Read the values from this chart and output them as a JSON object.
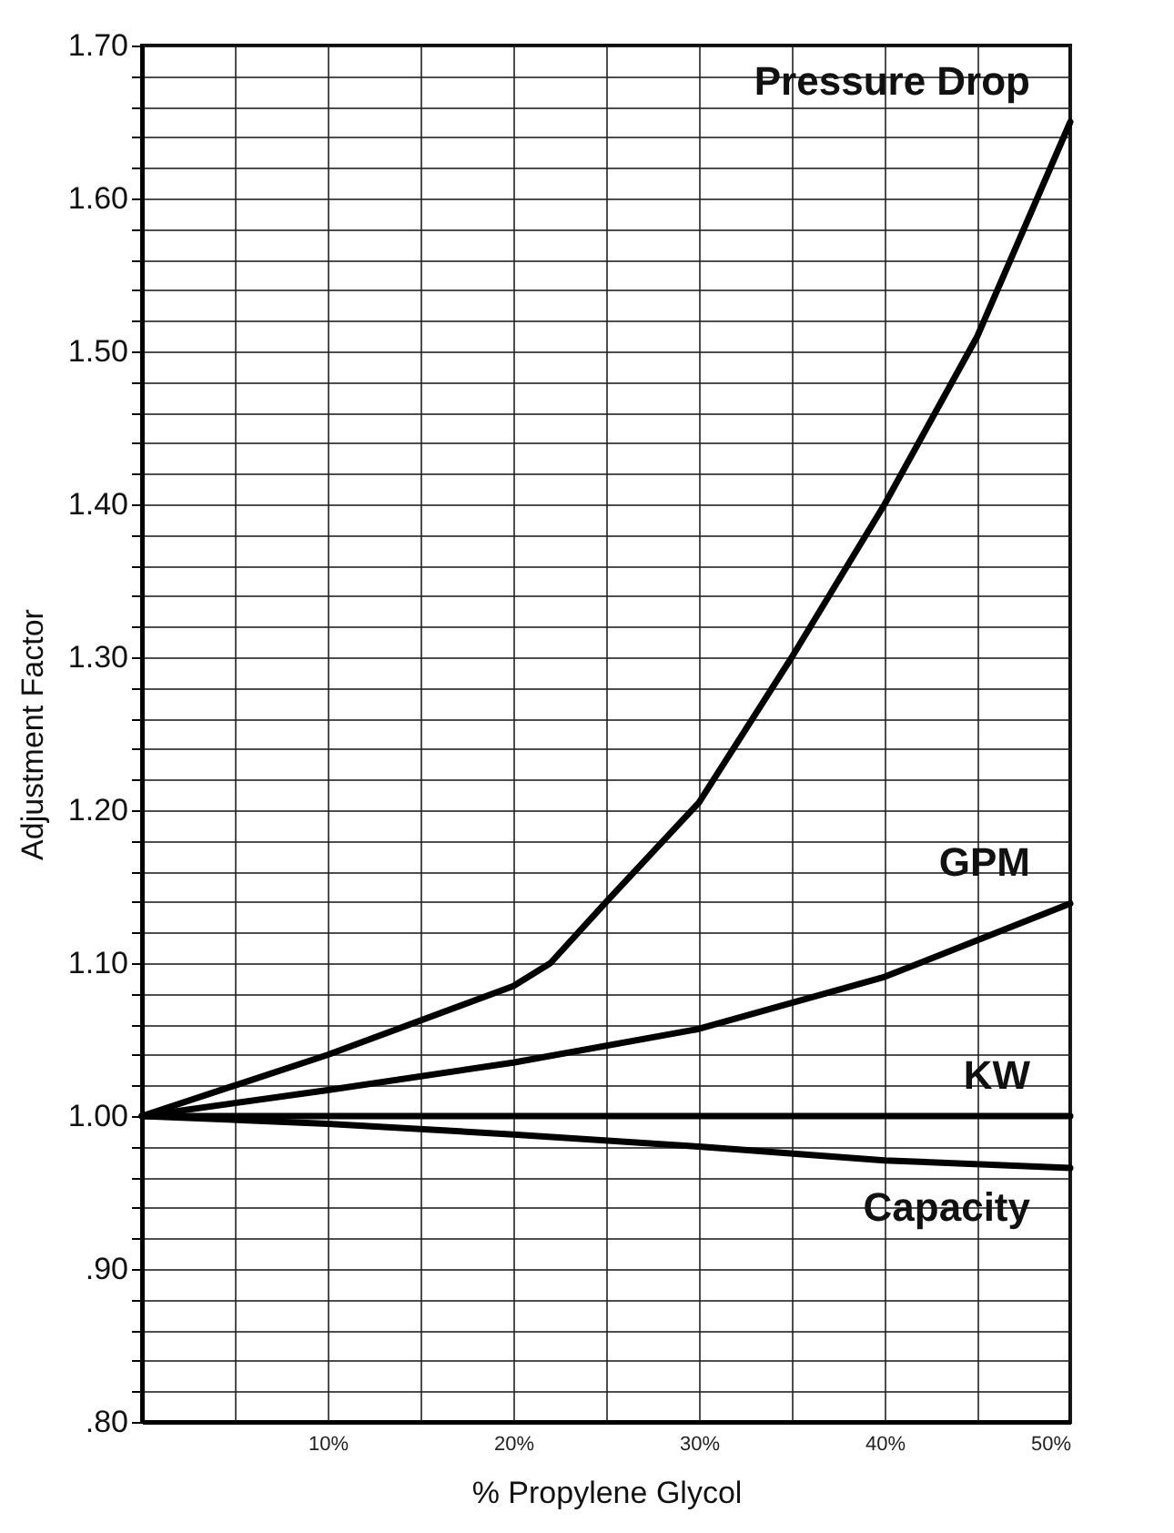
{
  "chart_data": {
    "type": "line",
    "xlabel": "% Propylene Glycol",
    "ylabel": "Adjustment Factor",
    "xlim": [
      0,
      50
    ],
    "xticks": [
      {
        "value": 5,
        "label": null
      },
      {
        "value": 10,
        "label": "10%"
      },
      {
        "value": 15,
        "label": null
      },
      {
        "value": 20,
        "label": "20%"
      },
      {
        "value": 25,
        "label": null
      },
      {
        "value": 30,
        "label": "30%"
      },
      {
        "value": 35,
        "label": null
      },
      {
        "value": 40,
        "label": "40%"
      },
      {
        "value": 45,
        "label": null
      },
      {
        "value": 50,
        "label": "50%"
      }
    ],
    "ylim": [
      0.8,
      1.7
    ],
    "yticks": [
      {
        "value": 0.8,
        "label": ".80"
      },
      {
        "value": 0.82,
        "label": null
      },
      {
        "value": 0.84,
        "label": null
      },
      {
        "value": 0.86,
        "label": null
      },
      {
        "value": 0.88,
        "label": null
      },
      {
        "value": 0.9,
        "label": ".90"
      },
      {
        "value": 0.92,
        "label": null
      },
      {
        "value": 0.94,
        "label": null
      },
      {
        "value": 0.96,
        "label": null
      },
      {
        "value": 0.98,
        "label": null
      },
      {
        "value": 1.0,
        "label": "1.00"
      },
      {
        "value": 1.02,
        "label": null
      },
      {
        "value": 1.04,
        "label": null
      },
      {
        "value": 1.06,
        "label": null
      },
      {
        "value": 1.08,
        "label": null
      },
      {
        "value": 1.1,
        "label": "1.10"
      },
      {
        "value": 1.12,
        "label": null
      },
      {
        "value": 1.14,
        "label": null
      },
      {
        "value": 1.16,
        "label": null
      },
      {
        "value": 1.18,
        "label": null
      },
      {
        "value": 1.2,
        "label": "1.20"
      },
      {
        "value": 1.22,
        "label": null
      },
      {
        "value": 1.24,
        "label": null
      },
      {
        "value": 1.26,
        "label": null
      },
      {
        "value": 1.28,
        "label": null
      },
      {
        "value": 1.3,
        "label": "1.30"
      },
      {
        "value": 1.32,
        "label": null
      },
      {
        "value": 1.34,
        "label": null
      },
      {
        "value": 1.36,
        "label": null
      },
      {
        "value": 1.38,
        "label": null
      },
      {
        "value": 1.4,
        "label": "1.40"
      },
      {
        "value": 1.42,
        "label": null
      },
      {
        "value": 1.44,
        "label": null
      },
      {
        "value": 1.46,
        "label": null
      },
      {
        "value": 1.48,
        "label": null
      },
      {
        "value": 1.5,
        "label": "1.50"
      },
      {
        "value": 1.52,
        "label": null
      },
      {
        "value": 1.54,
        "label": null
      },
      {
        "value": 1.56,
        "label": null
      },
      {
        "value": 1.58,
        "label": null
      },
      {
        "value": 1.6,
        "label": "1.60"
      },
      {
        "value": 1.62,
        "label": null
      },
      {
        "value": 1.64,
        "label": null
      },
      {
        "value": 1.66,
        "label": null
      },
      {
        "value": 1.68,
        "label": null
      },
      {
        "value": 1.7,
        "label": "1.70"
      }
    ],
    "grid": true,
    "legend": false,
    "marker": "none",
    "line_style": "solid",
    "series": [
      {
        "name": "Pressure Drop",
        "color": "#000000",
        "x": [
          0,
          10,
          20,
          22,
          25,
          30,
          35,
          40,
          45,
          50
        ],
        "values": [
          1.0,
          1.04,
          1.085,
          1.1,
          1.14,
          1.205,
          1.3,
          1.4,
          1.51,
          1.65
        ]
      },
      {
        "name": "GPM",
        "color": "#000000",
        "x": [
          0,
          10,
          20,
          30,
          40,
          50
        ],
        "values": [
          1.0,
          1.017,
          1.035,
          1.057,
          1.091,
          1.139
        ]
      },
      {
        "name": "KW",
        "color": "#000000",
        "x": [
          0,
          10,
          20,
          30,
          40,
          50
        ],
        "values": [
          1.0,
          1.0,
          1.0,
          1.0,
          1.0,
          1.0
        ]
      },
      {
        "name": "Capacity",
        "color": "#000000",
        "x": [
          0,
          10,
          20,
          30,
          40,
          50
        ],
        "values": [
          1.0,
          0.995,
          0.988,
          0.98,
          0.971,
          0.966
        ]
      }
    ]
  }
}
